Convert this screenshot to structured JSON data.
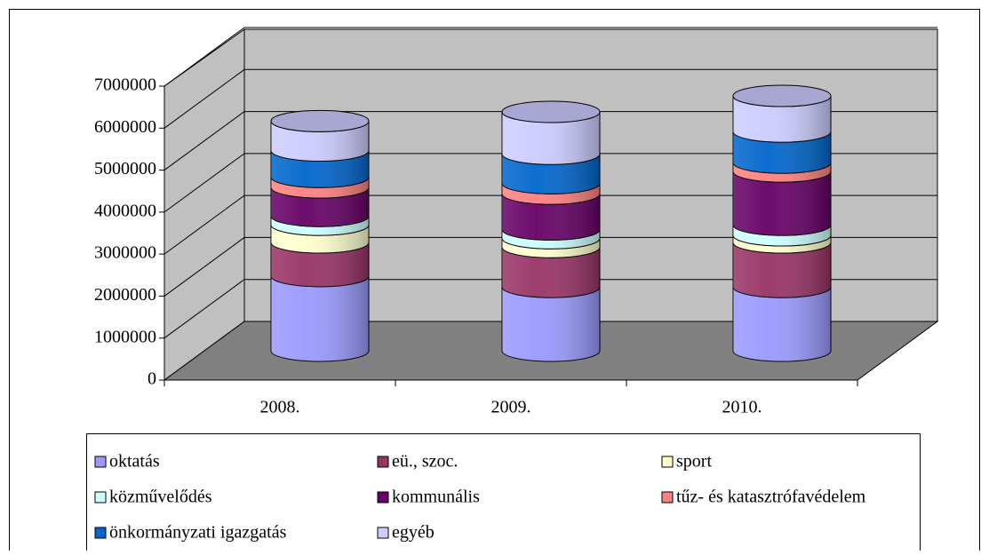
{
  "chart_data": {
    "type": "cylinder-stacked",
    "categories": [
      "2008.",
      "2009.",
      "2010."
    ],
    "series": [
      {
        "name": "oktatás",
        "color": "#9999ff",
        "values": [
          1780000,
          1520000,
          1520000
        ]
      },
      {
        "name": "eü., szoc.",
        "color": "#993366",
        "values": [
          800000,
          950000,
          1060000
        ]
      },
      {
        "name": "sport",
        "color": "#ffffcc",
        "values": [
          420000,
          210000,
          170000
        ]
      },
      {
        "name": "közművelődés",
        "color": "#ccffff",
        "values": [
          210000,
          210000,
          250000
        ]
      },
      {
        "name": "kommunális",
        "color": "#660066",
        "values": [
          680000,
          850000,
          1270000
        ]
      },
      {
        "name": "tűz- és katasztrófavédelem",
        "color": "#ff8080",
        "values": [
          250000,
          250000,
          210000
        ]
      },
      {
        "name": "önkormányzati igazgatás",
        "color": "#0066cc",
        "values": [
          630000,
          700000,
          740000
        ]
      },
      {
        "name": "egyéb",
        "color": "#ccccff",
        "values": [
          700000,
          1000000,
          850000
        ]
      }
    ],
    "ylim": [
      0,
      7000000
    ],
    "yticks": [
      0,
      1000000,
      2000000,
      3000000,
      4000000,
      5000000,
      6000000,
      7000000
    ],
    "grid": true,
    "legend": "bottom"
  }
}
